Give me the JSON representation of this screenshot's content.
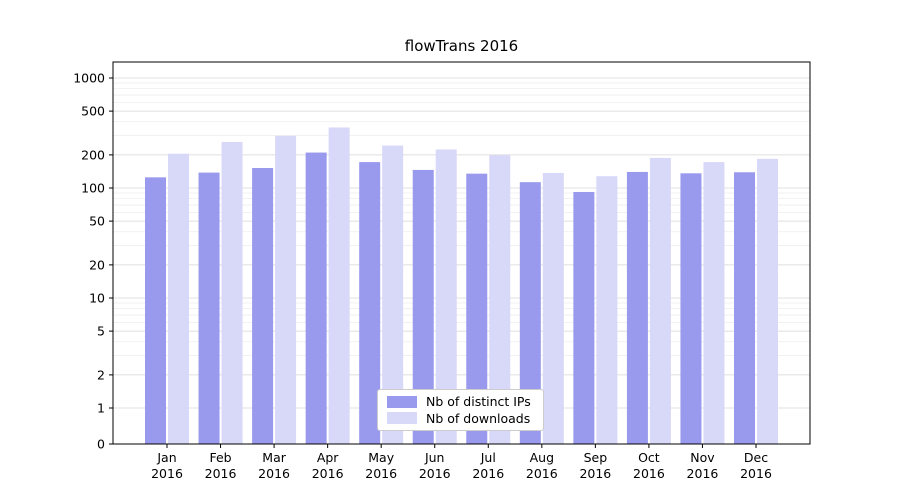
{
  "chart_data": {
    "type": "bar",
    "title": "flowTrans 2016",
    "categories": [
      "Jan",
      "Feb",
      "Mar",
      "Apr",
      "May",
      "Jun",
      "Jul",
      "Aug",
      "Sep",
      "Oct",
      "Nov",
      "Dec"
    ],
    "category_year": "2016",
    "series": [
      {
        "name": "Nb of distinct IPs",
        "color": "#9999ee",
        "values": [
          125,
          138,
          152,
          210,
          172,
          146,
          135,
          113,
          92,
          140,
          136,
          139
        ]
      },
      {
        "name": "Nb of downloads",
        "color": "#d8d8f8",
        "values": [
          205,
          262,
          298,
          355,
          243,
          224,
          199,
          137,
          128,
          188,
          172,
          184
        ]
      }
    ],
    "yscale": "symlog",
    "yticks": [
      0,
      1,
      2,
      5,
      10,
      20,
      50,
      100,
      200,
      500,
      1000
    ],
    "ylim": [
      0,
      1400
    ],
    "xlabel": "",
    "ylabel": "",
    "grid": true,
    "legend_position": "lower center",
    "colors": {
      "major_grid": "#d6d6d6",
      "minor_grid": "#ededed",
      "spine": "#000000",
      "background": "#ffffff"
    }
  }
}
